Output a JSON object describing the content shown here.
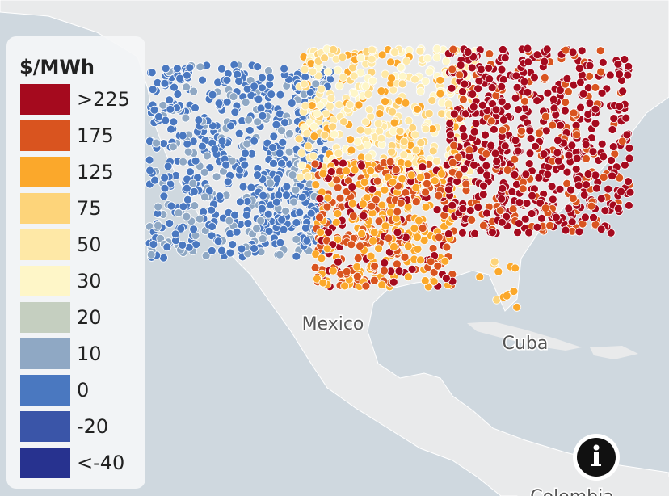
{
  "legend": {
    "title": "$/MWh",
    "items": [
      {
        "label": ">225",
        "color": "#a50a1e"
      },
      {
        "label": "175",
        "color": "#d9541f"
      },
      {
        "label": "125",
        "color": "#fba82b"
      },
      {
        "label": "75",
        "color": "#fdd47a"
      },
      {
        "label": "50",
        "color": "#fee8a6"
      },
      {
        "label": "30",
        "color": "#fef6c8"
      },
      {
        "label": "20",
        "color": "#c5cfc0"
      },
      {
        "label": "10",
        "color": "#8fa8c4"
      },
      {
        "label": "0",
        "color": "#4a78c0"
      },
      {
        "label": "-20",
        "color": "#3a55a8"
      },
      {
        "label": "<-40",
        "color": "#27328f"
      }
    ]
  },
  "map_labels": {
    "mexico": "Mexico",
    "cuba": "Cuba",
    "colombia": "Colombia"
  }
}
